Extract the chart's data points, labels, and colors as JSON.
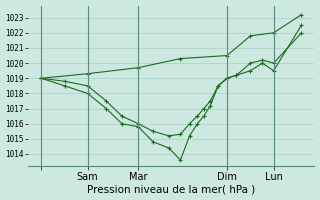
{
  "xlabel": "Pression niveau de la mer( hPa )",
  "background_color": "#cce8e0",
  "grid_color": "#aacfc8",
  "line_color": "#1a6b1a",
  "vline_color": "#5a8a7a",
  "ylim": [
    1013.2,
    1023.8
  ],
  "yticks": [
    1014,
    1015,
    1016,
    1017,
    1018,
    1019,
    1020,
    1021,
    1022,
    1023
  ],
  "xlim": [
    -0.05,
    1.05
  ],
  "xtick_positions": [
    0.0,
    0.178,
    0.373,
    0.714,
    0.893
  ],
  "xtick_labels": [
    "",
    "Sam",
    "Mar",
    "Dim",
    "Lun"
  ],
  "vline_positions": [
    0.0,
    0.178,
    0.373,
    0.714,
    0.893
  ],
  "line_top_x": [
    0.0,
    0.178,
    0.373,
    0.535,
    0.714,
    0.804,
    0.893,
    1.0
  ],
  "line_top_y": [
    1019.0,
    1019.3,
    1019.7,
    1020.3,
    1020.5,
    1021.8,
    1022.0,
    1023.2
  ],
  "line_mid_x": [
    0.0,
    0.09,
    0.178,
    0.25,
    0.31,
    0.373,
    0.43,
    0.49,
    0.535,
    0.57,
    0.6,
    0.625,
    0.65,
    0.68,
    0.714,
    0.75,
    0.804,
    0.85,
    0.893,
    1.0
  ],
  "line_mid_y": [
    1019.0,
    1018.8,
    1018.5,
    1017.5,
    1016.5,
    1016.0,
    1015.5,
    1015.2,
    1015.3,
    1016.0,
    1016.5,
    1017.0,
    1017.5,
    1018.5,
    1019.0,
    1019.2,
    1019.5,
    1020.0,
    1019.5,
    1022.5
  ],
  "line_bot_x": [
    0.0,
    0.09,
    0.178,
    0.25,
    0.31,
    0.373,
    0.43,
    0.49,
    0.535,
    0.57,
    0.6,
    0.625,
    0.65,
    0.68,
    0.714,
    0.75,
    0.804,
    0.85,
    0.893,
    1.0
  ],
  "line_bot_y": [
    1019.0,
    1018.5,
    1018.0,
    1017.0,
    1016.0,
    1015.8,
    1014.8,
    1014.4,
    1013.6,
    1015.2,
    1016.0,
    1016.5,
    1017.2,
    1018.5,
    1019.0,
    1019.2,
    1020.0,
    1020.2,
    1020.0,
    1022.0
  ],
  "marker": "+",
  "marker_size": 3.5,
  "linewidth": 0.8
}
